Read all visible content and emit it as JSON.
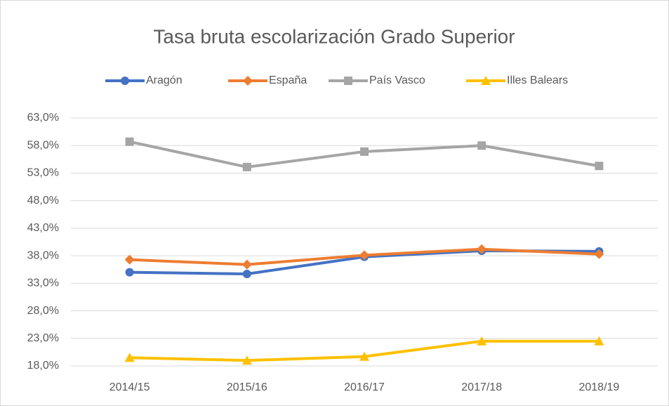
{
  "chart_data": {
    "type": "line",
    "title": "Tasa bruta escolarización Grado Superior",
    "categories": [
      "2014/15",
      "2015/16",
      "2016/17",
      "2017/18",
      "2018/19"
    ],
    "series": [
      {
        "name": "Aragón",
        "color": "#4472c4",
        "marker": "circle",
        "values": [
          35.0,
          34.7,
          37.8,
          38.9,
          38.8
        ]
      },
      {
        "name": "España",
        "color": "#ed7d31",
        "marker": "diamond",
        "values": [
          37.3,
          36.4,
          38.1,
          39.2,
          38.3
        ]
      },
      {
        "name": "País Vasco",
        "color": "#a5a5a5",
        "marker": "square",
        "values": [
          58.7,
          54.1,
          56.9,
          58.0,
          54.3
        ]
      },
      {
        "name": "Illes Balears",
        "color": "#ffc000",
        "marker": "triangle",
        "values": [
          19.5,
          19.0,
          19.7,
          22.5,
          22.5
        ]
      }
    ],
    "ylim": [
      18,
      63
    ],
    "yticks": [
      {
        "value": 18,
        "label": "18,0%"
      },
      {
        "value": 23,
        "label": "23,0%"
      },
      {
        "value": 28,
        "label": "28,0%"
      },
      {
        "value": 33,
        "label": "33,0%"
      },
      {
        "value": 38,
        "label": "38,0%"
      },
      {
        "value": 43,
        "label": "43,0%"
      },
      {
        "value": 48,
        "label": "48,0%"
      },
      {
        "value": 53,
        "label": "53,0%"
      },
      {
        "value": 58,
        "label": "58,0%"
      },
      {
        "value": 63,
        "label": "63,0%"
      }
    ],
    "grid": true,
    "legend": "top"
  }
}
